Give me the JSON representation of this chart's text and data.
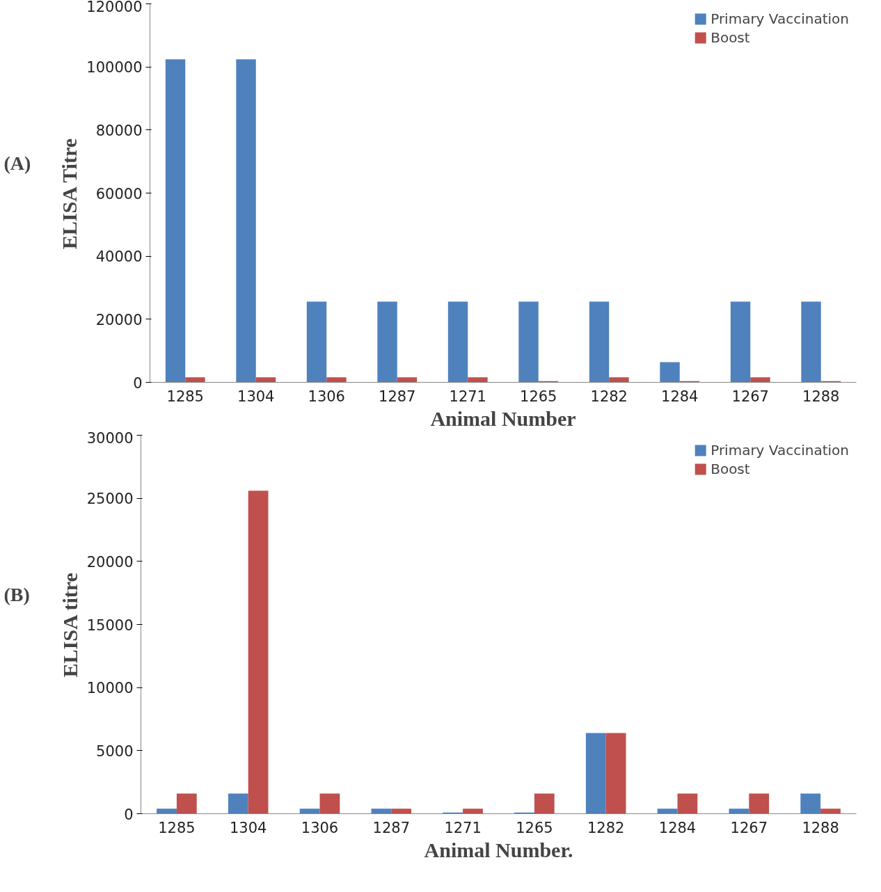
{
  "chart_data": [
    {
      "type": "bar",
      "annotations": [
        "(A)"
      ],
      "ylabel": "ELISA Titre",
      "xlabel": "Animal Number",
      "categories": [
        "1285",
        "1304",
        "1306",
        "1287",
        "1271",
        "1265",
        "1282",
        "1284",
        "1267",
        "1288"
      ],
      "series": [
        {
          "name": "Primary Vaccination",
          "color": "#4f81bd",
          "values": [
            102400,
            102400,
            25600,
            25600,
            25600,
            25600,
            25600,
            6400,
            25600,
            25600
          ]
        },
        {
          "name": "Boost",
          "color": "#c0504d",
          "values": [
            1600,
            1600,
            1600,
            1600,
            1600,
            400,
            1600,
            400,
            1600,
            400
          ]
        }
      ],
      "ylim": [
        0,
        120000
      ],
      "yticks": [
        0,
        20000,
        40000,
        60000,
        80000,
        100000,
        120000
      ],
      "legend": "top right"
    },
    {
      "type": "bar",
      "annotations": [
        "(B)"
      ],
      "ylabel": "ELISA titre",
      "xlabel": "Animal Number.",
      "categories": [
        "1285",
        "1304",
        "1306",
        "1287",
        "1271",
        "1265",
        "1282",
        "1284",
        "1267",
        "1288"
      ],
      "series": [
        {
          "name": "Primary Vaccination",
          "color": "#4f81bd",
          "values": [
            400,
            1600,
            400,
            400,
            100,
            100,
            6400,
            400,
            400,
            1600
          ]
        },
        {
          "name": "Boost",
          "color": "#c0504d",
          "values": [
            1600,
            25600,
            1600,
            400,
            400,
            1600,
            6400,
            1600,
            1600,
            400
          ]
        }
      ],
      "ylim": [
        0,
        30000
      ],
      "yticks": [
        0,
        5000,
        10000,
        15000,
        20000,
        25000,
        30000
      ],
      "legend": "top right"
    }
  ]
}
